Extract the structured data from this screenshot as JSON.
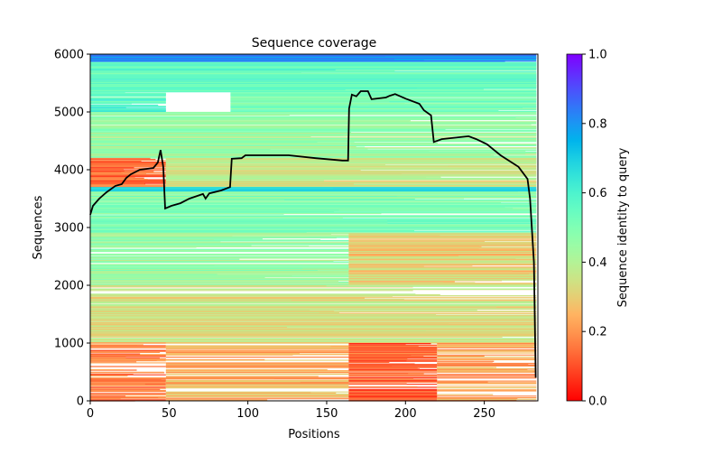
{
  "chart_data": {
    "type": "line",
    "title": "Sequence coverage",
    "xlabel": "Positions",
    "ylabel": "Sequences",
    "xlim": [
      0,
      284
    ],
    "ylim": [
      0,
      6000
    ],
    "xticks": [
      0,
      50,
      100,
      150,
      200,
      250
    ],
    "yticks": [
      0,
      1000,
      2000,
      3000,
      4000,
      5000,
      6000
    ],
    "grid": false,
    "colorbar": {
      "label": "Sequence identity to query",
      "range": [
        0,
        1
      ],
      "ticks": [
        "0.0",
        "0.2",
        "0.4",
        "0.6",
        "0.8",
        "1.0"
      ],
      "colormap": "rainbow_r"
    },
    "coverage_series": {
      "name": "coverage",
      "color": "#000000",
      "x": [
        0,
        1.7,
        5.7,
        10.3,
        16,
        20,
        22.9,
        25.7,
        31.5,
        40,
        42.9,
        44.6,
        46.3,
        47.5,
        51.5,
        57.2,
        62.9,
        71.5,
        73.2,
        75.5,
        83,
        88.7,
        89.8,
        96,
        98.4,
        125.9,
        143,
        160,
        163.6,
        164.2,
        166,
        168.8,
        171.6,
        176.2,
        178.5,
        187.6,
        190,
        193.4,
        200.2,
        208.8,
        211.7,
        216.2,
        218,
        223,
        240,
        244.9,
        251.7,
        260.3,
        271.7,
        277.4,
        279,
        281.5,
        282.6
      ],
      "y": [
        3220,
        3375,
        3500,
        3610,
        3720,
        3750,
        3860,
        3920,
        4000,
        4030,
        4125,
        4340,
        4050,
        3330,
        3375,
        3420,
        3500,
        3580,
        3500,
        3590,
        3640,
        3700,
        4190,
        4200,
        4250,
        4250,
        4200,
        4160,
        4160,
        5060,
        5300,
        5270,
        5360,
        5360,
        5220,
        5250,
        5280,
        5310,
        5230,
        5140,
        5030,
        4940,
        4480,
        4530,
        4580,
        4530,
        4440,
        4250,
        4050,
        3840,
        3500,
        2400,
        400
      ]
    },
    "alignment_blocks": [
      {
        "seq": [
          5860,
          6000
        ],
        "pos": [
          0,
          283
        ],
        "identity": 0.8,
        "fill": 0.98
      },
      {
        "seq": [
          5350,
          5860
        ],
        "pos": [
          0,
          283
        ],
        "identity": 0.56,
        "fill": 0.92
      },
      {
        "seq": [
          5000,
          5350
        ],
        "pos": [
          0,
          48
        ],
        "identity": 0.58,
        "fill": 0.75
      },
      {
        "seq": [
          5000,
          5350
        ],
        "pos": [
          89,
          283
        ],
        "identity": 0.52,
        "fill": 0.9
      },
      {
        "seq": [
          4200,
          5000
        ],
        "pos": [
          0,
          283
        ],
        "identity": 0.44,
        "fill": 0.8
      },
      {
        "seq": [
          3700,
          4200
        ],
        "pos": [
          0,
          48
        ],
        "identity": 0.14,
        "fill": 0.85
      },
      {
        "seq": [
          3700,
          4200
        ],
        "pos": [
          48,
          283
        ],
        "identity": 0.36,
        "fill": 0.85
      },
      {
        "seq": [
          3620,
          3700
        ],
        "pos": [
          0,
          283
        ],
        "identity": 0.7,
        "fill": 1.0
      },
      {
        "seq": [
          2900,
          3620
        ],
        "pos": [
          0,
          283
        ],
        "identity": 0.5,
        "fill": 0.85
      },
      {
        "seq": [
          2000,
          2900
        ],
        "pos": [
          0,
          164
        ],
        "identity": 0.45,
        "fill": 0.75
      },
      {
        "seq": [
          2000,
          2900
        ],
        "pos": [
          164,
          283
        ],
        "identity": 0.3,
        "fill": 0.9
      },
      {
        "seq": [
          1000,
          2000
        ],
        "pos": [
          0,
          283
        ],
        "identity": 0.33,
        "fill": 0.7
      },
      {
        "seq": [
          0,
          1000
        ],
        "pos": [
          0,
          48
        ],
        "identity": 0.16,
        "fill": 0.6
      },
      {
        "seq": [
          0,
          1000
        ],
        "pos": [
          48,
          164
        ],
        "identity": 0.24,
        "fill": 0.55
      },
      {
        "seq": [
          0,
          1000
        ],
        "pos": [
          164,
          220
        ],
        "identity": 0.12,
        "fill": 0.75
      },
      {
        "seq": [
          0,
          1000
        ],
        "pos": [
          220,
          283
        ],
        "identity": 0.22,
        "fill": 0.45
      }
    ]
  }
}
